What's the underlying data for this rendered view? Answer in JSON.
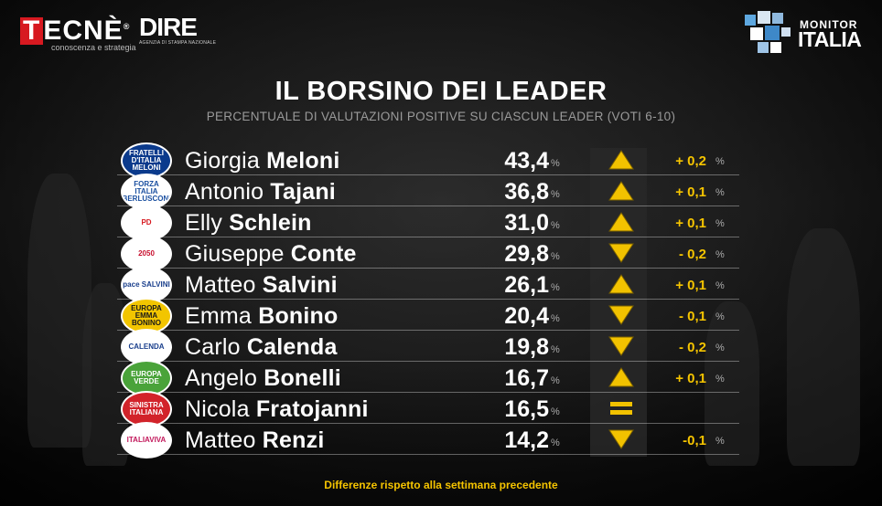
{
  "logos": {
    "tecne": {
      "main": "TECNÈ",
      "sub": "conoscenza e strategia",
      "mark": "®"
    },
    "dire": {
      "main": "DIRE",
      "sub": "AGENZIA DI STAMPA NAZIONALE"
    },
    "monitor": {
      "line1": "MONITOR",
      "line2": "ITALIA"
    }
  },
  "title": "IL BORSINO DEI LEADER",
  "subtitle": "PERCENTUALE DI VALUTAZIONI POSITIVE SU CIASCUN LEADER (VOTI 6-10)",
  "percent_sign": "%",
  "rows": [
    {
      "first": "Giorgia",
      "last": "Meloni",
      "value": "43,4",
      "trend": "up",
      "diff": "+ 0,2",
      "badge": {
        "text": "FRATELLI D'ITALIA MELONI",
        "bg": "#0b3a8c",
        "fg": "#ffffff"
      }
    },
    {
      "first": "Antonio",
      "last": "Tajani",
      "value": "36,8",
      "trend": "up",
      "diff": "+ 0,1",
      "badge": {
        "text": "FORZA ITALIA BERLUSCONI",
        "bg": "#ffffff",
        "fg": "#1a4fa0"
      }
    },
    {
      "first": "Elly",
      "last": "Schlein",
      "value": "31,0",
      "trend": "up",
      "diff": "+ 0,1",
      "badge": {
        "text": "PD",
        "bg": "#ffffff",
        "fg": "#d71920"
      }
    },
    {
      "first": "Giuseppe",
      "last": "Conte",
      "value": "29,8",
      "trend": "down",
      "diff": "- 0,2",
      "badge": {
        "text": "2050",
        "bg": "#ffffff",
        "fg": "#c8102e"
      }
    },
    {
      "first": "Matteo",
      "last": "Salvini",
      "value": "26,1",
      "trend": "up",
      "diff": "+ 0,1",
      "badge": {
        "text": "pace SALVINI",
        "bg": "#ffffff",
        "fg": "#1a3f8c"
      }
    },
    {
      "first": "Emma",
      "last": "Bonino",
      "value": "20,4",
      "trend": "down",
      "diff": "- 0,1",
      "badge": {
        "text": "EUROPA EMMA BONINO",
        "bg": "#f2c500",
        "fg": "#1a1a1a"
      }
    },
    {
      "first": "Carlo",
      "last": "Calenda",
      "value": "19,8",
      "trend": "down",
      "diff": "- 0,2",
      "badge": {
        "text": "CALENDA",
        "bg": "#ffffff",
        "fg": "#1a3f8c"
      }
    },
    {
      "first": "Angelo",
      "last": "Bonelli",
      "value": "16,7",
      "trend": "up",
      "diff": "+ 0,1",
      "badge": {
        "text": "EUROPA VERDE",
        "bg": "#4aa33a",
        "fg": "#ffffff"
      }
    },
    {
      "first": "Nicola",
      "last": "Fratojanni",
      "value": "16,5",
      "trend": "equal",
      "diff": "",
      "badge": {
        "text": "SINISTRA ITALIANA",
        "bg": "#d2232a",
        "fg": "#ffffff"
      }
    },
    {
      "first": "Matteo",
      "last": "Renzi",
      "value": "14,2",
      "trend": "down",
      "diff": "-0,1",
      "badge": {
        "text": "ITALIAVIVA",
        "bg": "#ffffff",
        "fg": "#c2185b"
      }
    }
  ],
  "footer": "Differenze rispetto alla settimana precedente",
  "colors": {
    "accent": "#f5c400",
    "arrow": "#f2c200"
  }
}
